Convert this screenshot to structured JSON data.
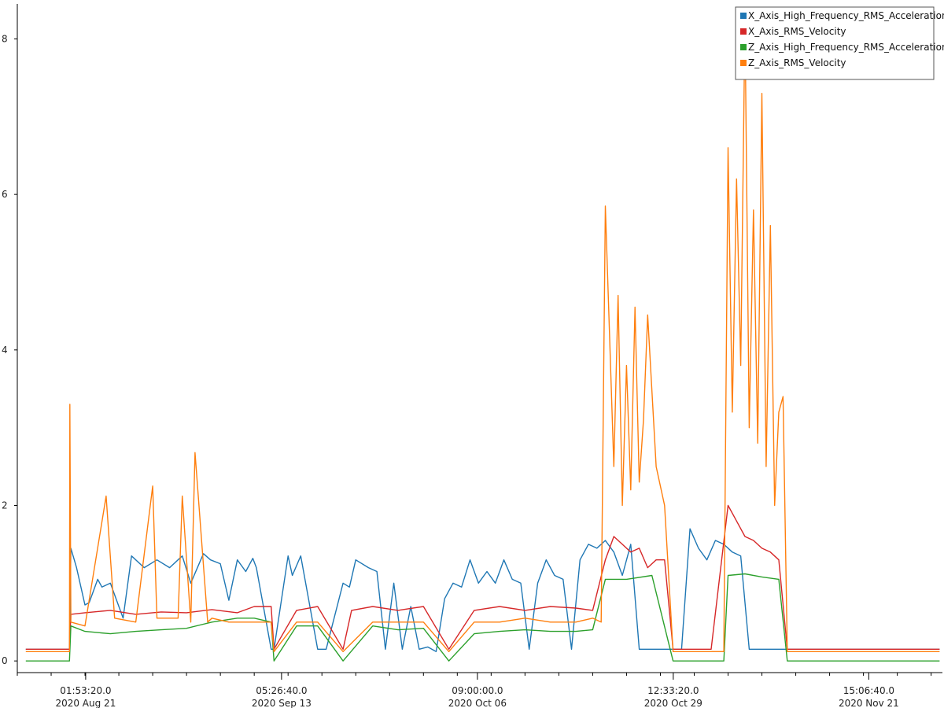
{
  "chart_data": {
    "type": "line",
    "title": "",
    "xlabel": "",
    "ylabel": "",
    "x_range": [
      "2020-08-13T00:00:00",
      "2020-11-30T08:00:00"
    ],
    "ylim": [
      -0.15,
      8.45
    ],
    "yticks": [
      0,
      2,
      4,
      6,
      8
    ],
    "xticks": [
      {
        "x": "2020-08-21T01:53:20",
        "line1": "01:53:20.0",
        "line2": "2020 Aug 21"
      },
      {
        "x": "2020-09-13T05:26:40",
        "line1": "05:26:40.0",
        "line2": "2020 Sep 13"
      },
      {
        "x": "2020-10-06T09:00:00",
        "line1": "09:00:00.0",
        "line2": "2020 Oct 06"
      },
      {
        "x": "2020-10-29T12:33:20",
        "line1": "12:33:20.0",
        "line2": "2020 Oct 29"
      },
      {
        "x": "2020-11-21T15:06:40",
        "line1": "15:06:40.0",
        "line2": "2020 Nov 21"
      }
    ],
    "grid": false,
    "legend_position": "top-right",
    "series": [
      {
        "name": "X_Axis_High_Frequency_RMS_Acceleration",
        "color": "#1f77b4",
        "x": [
          "2020-08-14T00:00",
          "2020-08-19T04:00",
          "2020-08-19T08:00",
          "2020-08-20T00:00",
          "2020-08-21T00:00",
          "2020-08-21T12:00",
          "2020-08-22T12:00",
          "2020-08-23T00:00",
          "2020-08-24T00:00",
          "2020-08-25T12:00",
          "2020-08-26T12:00",
          "2020-08-28T00:00",
          "2020-08-29T12:00",
          "2020-08-31T00:00",
          "2020-09-01T12:00",
          "2020-09-02T12:00",
          "2020-09-04T00:00",
          "2020-09-04T20:00",
          "2020-09-06T00:00",
          "2020-09-07T00:00",
          "2020-09-08T00:00",
          "2020-09-09T00:00",
          "2020-09-09T20:00",
          "2020-09-10T06:00",
          "2020-09-12T00:00",
          "2020-09-12T08:00",
          "2020-09-14T00:00",
          "2020-09-14T12:00",
          "2020-09-15T12:00",
          "2020-09-17T12:00",
          "2020-09-18T12:00",
          "2020-09-20T12:00",
          "2020-09-21T06:00",
          "2020-09-22T00:00",
          "2020-09-23T12:00",
          "2020-09-24T12:00",
          "2020-09-25T12:00",
          "2020-09-26T12:00",
          "2020-09-27T12:00",
          "2020-09-28T12:00",
          "2020-09-29T12:00",
          "2020-09-30T12:00",
          "2020-10-01T12:00",
          "2020-10-02T12:00",
          "2020-10-03T12:00",
          "2020-10-04T12:00",
          "2020-10-05T12:00",
          "2020-10-06T12:00",
          "2020-10-07T12:00",
          "2020-10-08T12:00",
          "2020-10-09T12:00",
          "2020-10-10T12:00",
          "2020-10-11T12:00",
          "2020-10-12T12:00",
          "2020-10-13T12:00",
          "2020-10-14T12:00",
          "2020-10-15T12:00",
          "2020-10-16T12:00",
          "2020-10-17T12:00",
          "2020-10-18T12:00",
          "2020-10-19T12:00",
          "2020-10-20T12:00",
          "2020-10-21T12:00",
          "2020-10-22T12:00",
          "2020-10-23T12:00",
          "2020-10-24T12:00",
          "2020-10-25T12:00",
          "2020-10-26T12:00",
          "2020-10-27T12:00",
          "2020-10-28T12:00",
          "2020-10-29T12:00",
          "2020-10-30T12:00",
          "2020-10-31T12:00",
          "2020-11-01T12:00",
          "2020-11-02T12:00",
          "2020-11-03T12:00",
          "2020-11-04T12:00",
          "2020-11-05T12:00",
          "2020-11-06T12:00",
          "2020-11-07T12:00",
          "2020-11-08T12:00",
          "2020-11-09T12:00",
          "2020-11-10T12:00",
          "2020-11-12T00:00",
          "2020-11-16T00:00",
          "2020-11-22T00:00",
          "2020-11-30T00:00"
        ],
        "y": [
          0.15,
          0.15,
          1.45,
          1.2,
          0.72,
          0.75,
          1.05,
          0.95,
          1.0,
          0.55,
          1.35,
          1.2,
          1.3,
          1.2,
          1.35,
          1.0,
          1.38,
          1.3,
          1.25,
          0.78,
          1.3,
          1.15,
          1.32,
          1.2,
          0.15,
          0.15,
          1.35,
          1.1,
          1.35,
          0.15,
          0.15,
          1.0,
          0.95,
          1.3,
          1.2,
          1.15,
          0.15,
          1.0,
          0.15,
          0.7,
          0.15,
          0.18,
          0.12,
          0.8,
          1.0,
          0.95,
          1.3,
          1.0,
          1.15,
          1.0,
          1.3,
          1.05,
          1.0,
          0.15,
          1.0,
          1.3,
          1.1,
          1.05,
          0.15,
          1.3,
          1.5,
          1.45,
          1.55,
          1.4,
          1.1,
          1.5,
          0.15,
          0.15,
          0.15,
          0.15,
          0.15,
          0.15,
          1.7,
          1.45,
          1.3,
          1.55,
          1.5,
          1.4,
          1.35,
          0.15,
          0.15,
          0.15,
          0.15,
          0.15,
          0.15,
          0.15,
          0.15
        ]
      },
      {
        "name": "X_Axis_RMS_Velocity",
        "color": "#d62728",
        "x": [
          "2020-08-14T00:00",
          "2020-08-19T04:00",
          "2020-08-19T08:00",
          "2020-08-21T00:00",
          "2020-08-24T00:00",
          "2020-08-27T00:00",
          "2020-08-30T00:00",
          "2020-09-02T00:00",
          "2020-09-05T00:00",
          "2020-09-08T00:00",
          "2020-09-10T00:00",
          "2020-09-12T00:00",
          "2020-09-12T08:00",
          "2020-09-15T00:00",
          "2020-09-17T12:00",
          "2020-09-20T12:00",
          "2020-09-21T12:00",
          "2020-09-24T00:00",
          "2020-09-27T00:00",
          "2020-09-30T00:00",
          "2020-10-03T00:00",
          "2020-10-06T00:00",
          "2020-10-09T00:00",
          "2020-10-12T00:00",
          "2020-10-15T00:00",
          "2020-10-18T00:00",
          "2020-10-20T00:00",
          "2020-10-21T12:00",
          "2020-10-22T12:00",
          "2020-10-23T12:00",
          "2020-10-24T12:00",
          "2020-10-25T12:00",
          "2020-10-26T12:00",
          "2020-10-27T12:00",
          "2020-10-28T12:00",
          "2020-10-29T12:00",
          "2020-10-30T12:00",
          "2020-11-03T00:00",
          "2020-11-05T00:00",
          "2020-11-06T00:00",
          "2020-11-07T00:00",
          "2020-11-08T00:00",
          "2020-11-09T00:00",
          "2020-11-10T00:00",
          "2020-11-11T00:00",
          "2020-11-12T00:00",
          "2020-11-20T00:00",
          "2020-11-30T00:00"
        ],
        "y": [
          0.15,
          0.15,
          0.6,
          0.62,
          0.65,
          0.6,
          0.63,
          0.62,
          0.66,
          0.62,
          0.7,
          0.7,
          0.15,
          0.65,
          0.7,
          0.15,
          0.65,
          0.7,
          0.65,
          0.7,
          0.15,
          0.65,
          0.7,
          0.65,
          0.7,
          0.68,
          0.65,
          1.3,
          1.6,
          1.5,
          1.4,
          1.45,
          1.2,
          1.3,
          1.3,
          0.15,
          0.15,
          0.15,
          2.0,
          1.8,
          1.6,
          1.55,
          1.45,
          1.4,
          1.3,
          0.15,
          0.15,
          0.15
        ]
      },
      {
        "name": "Z_Axis_High_Frequency_RMS_Acceleration",
        "color": "#2ca02c",
        "x": [
          "2020-08-14T00:00",
          "2020-08-19T04:00",
          "2020-08-19T08:00",
          "2020-08-21T00:00",
          "2020-08-24T00:00",
          "2020-08-27T00:00",
          "2020-08-30T00:00",
          "2020-09-02T00:00",
          "2020-09-05T00:00",
          "2020-09-08T00:00",
          "2020-09-10T00:00",
          "2020-09-12T00:00",
          "2020-09-12T08:00",
          "2020-09-15T00:00",
          "2020-09-17T12:00",
          "2020-09-20T12:00",
          "2020-09-24T00:00",
          "2020-09-27T00:00",
          "2020-09-30T00:00",
          "2020-10-03T00:00",
          "2020-10-06T00:00",
          "2020-10-09T00:00",
          "2020-10-12T00:00",
          "2020-10-15T00:00",
          "2020-10-18T00:00",
          "2020-10-20T00:00",
          "2020-10-21T12:00",
          "2020-10-24T00:00",
          "2020-10-27T00:00",
          "2020-10-29T12:00",
          "2020-10-30T12:00",
          "2020-11-04T12:00",
          "2020-11-05T00:00",
          "2020-11-07T00:00",
          "2020-11-09T00:00",
          "2020-11-11T00:00",
          "2020-11-12T00:00",
          "2020-11-20T00:00",
          "2020-11-30T00:00"
        ],
        "y": [
          0.0,
          0.0,
          0.45,
          0.38,
          0.35,
          0.38,
          0.4,
          0.42,
          0.5,
          0.55,
          0.55,
          0.5,
          0.0,
          0.45,
          0.45,
          0.0,
          0.45,
          0.4,
          0.42,
          0.0,
          0.35,
          0.38,
          0.4,
          0.38,
          0.38,
          0.4,
          1.05,
          1.05,
          1.1,
          0.0,
          0.0,
          0.0,
          1.1,
          1.12,
          1.08,
          1.05,
          0.0,
          0.0,
          0.0
        ]
      },
      {
        "name": "Z_Axis_RMS_Velocity",
        "color": "#ff7f0e",
        "x": [
          "2020-08-14T00:00",
          "2020-08-19T04:00",
          "2020-08-19T05:00",
          "2020-08-19T08:00",
          "2020-08-21T00:00",
          "2020-08-23T12:00",
          "2020-08-24T12:00",
          "2020-08-27T00:00",
          "2020-08-29T00:00",
          "2020-08-29T12:00",
          "2020-09-01T00:00",
          "2020-09-01T12:00",
          "2020-09-02T12:00",
          "2020-09-03T00:00",
          "2020-09-04T12:00",
          "2020-09-05T00:00",
          "2020-09-07T00:00",
          "2020-09-10T00:00",
          "2020-09-12T00:00",
          "2020-09-12T08:00",
          "2020-09-15T00:00",
          "2020-09-17T12:00",
          "2020-09-20T12:00",
          "2020-09-24T00:00",
          "2020-09-27T00:00",
          "2020-09-30T00:00",
          "2020-10-03T00:00",
          "2020-10-06T00:00",
          "2020-10-09T00:00",
          "2020-10-12T00:00",
          "2020-10-15T00:00",
          "2020-10-18T00:00",
          "2020-10-20T00:00",
          "2020-10-21T00:00",
          "2020-10-21T12:00",
          "2020-10-22T12:00",
          "2020-10-23T00:00",
          "2020-10-23T12:00",
          "2020-10-24T00:00",
          "2020-10-24T12:00",
          "2020-10-25T00:00",
          "2020-10-25T12:00",
          "2020-10-26T00:00",
          "2020-10-26T12:00",
          "2020-10-27T12:00",
          "2020-10-28T12:00",
          "2020-10-29T12:00",
          "2020-10-30T12:00",
          "2020-11-04T12:00",
          "2020-11-05T00:00",
          "2020-11-05T12:00",
          "2020-11-06T00:00",
          "2020-11-06T12:00",
          "2020-11-07T00:00",
          "2020-11-07T12:00",
          "2020-11-08T00:00",
          "2020-11-08T12:00",
          "2020-11-09T00:00",
          "2020-11-09T12:00",
          "2020-11-10T00:00",
          "2020-11-10T12:00",
          "2020-11-11T00:00",
          "2020-11-11T12:00",
          "2020-11-12T00:00",
          "2020-11-20T00:00",
          "2020-11-30T00:00"
        ],
        "y": [
          0.12,
          0.12,
          3.3,
          0.5,
          0.45,
          2.12,
          0.55,
          0.5,
          2.25,
          0.55,
          0.55,
          2.12,
          0.5,
          2.68,
          0.5,
          0.55,
          0.5,
          0.5,
          0.5,
          0.12,
          0.5,
          0.5,
          0.12,
          0.5,
          0.5,
          0.5,
          0.12,
          0.5,
          0.5,
          0.55,
          0.5,
          0.5,
          0.55,
          0.5,
          5.85,
          2.5,
          4.7,
          2.0,
          3.8,
          2.2,
          4.55,
          2.3,
          3.1,
          4.45,
          2.5,
          2.0,
          0.12,
          0.12,
          0.12,
          6.6,
          3.2,
          6.2,
          3.8,
          8.25,
          3.0,
          5.8,
          2.8,
          7.3,
          2.5,
          5.6,
          2.0,
          3.2,
          3.4,
          0.12,
          0.12,
          0.12
        ]
      }
    ]
  }
}
